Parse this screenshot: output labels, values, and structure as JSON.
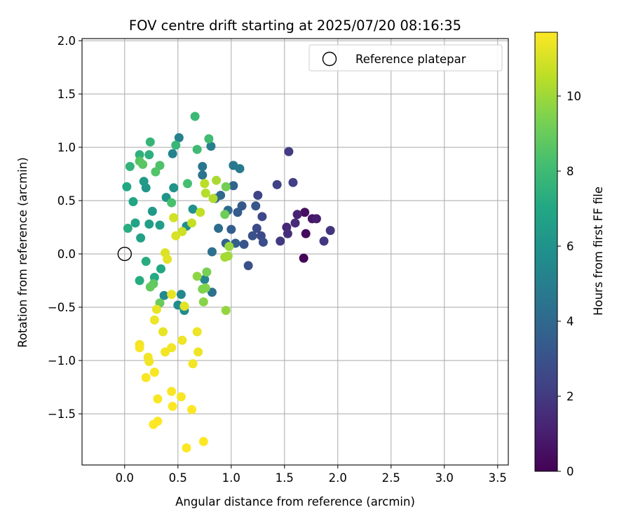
{
  "chart_data": {
    "type": "scatter",
    "title": "FOV centre drift starting at 2025/07/20 08:16:35",
    "xlabel": "Angular distance from reference (arcmin)",
    "ylabel": "Rotation from reference (arcmin)",
    "xlim": [
      -0.4,
      3.6
    ],
    "ylim": [
      -1.98,
      2.02
    ],
    "xticks": [
      0.0,
      0.5,
      1.0,
      1.5,
      2.0,
      2.5,
      3.0,
      3.5
    ],
    "xtick_labels": [
      "0.0",
      "0.5",
      "1.0",
      "1.5",
      "2.0",
      "2.5",
      "3.0",
      "3.5"
    ],
    "yticks": [
      -1.5,
      -1.0,
      -0.5,
      0.0,
      0.5,
      1.0,
      1.5,
      2.0
    ],
    "ytick_labels": [
      "−1.5",
      "−1.0",
      "−0.5",
      "0.0",
      "0.5",
      "1.0",
      "1.5",
      "2.0"
    ],
    "grid": true,
    "legend": {
      "position": "upper-right",
      "entries": [
        {
          "label": "Reference platepar",
          "marker": "open-circle"
        }
      ]
    },
    "colorbar": {
      "label": "Hours from first FF file",
      "colormap": "viridis",
      "range": [
        0,
        11.7
      ],
      "ticks": [
        0,
        2,
        4,
        6,
        8,
        10
      ],
      "tick_labels": [
        "0",
        "2",
        "4",
        "6",
        "8",
        "10"
      ]
    },
    "reference_point": {
      "x": 0.0,
      "y": 0.0,
      "label": "Reference platepar"
    },
    "series": [
      {
        "encoding": [
          "x",
          "y",
          "hours"
        ],
        "points": [
          [
            1.68,
            -0.04,
            0.1
          ],
          [
            1.7,
            0.19,
            0.3
          ],
          [
            1.69,
            0.39,
            0.5
          ],
          [
            1.76,
            0.33,
            0.7
          ],
          [
            1.8,
            0.33,
            0.9
          ],
          [
            1.62,
            0.37,
            1.1
          ],
          [
            1.52,
            0.25,
            1.3
          ],
          [
            1.6,
            0.29,
            1.5
          ],
          [
            1.53,
            0.19,
            1.6
          ],
          [
            1.93,
            0.22,
            1.8
          ],
          [
            1.87,
            0.12,
            1.9
          ],
          [
            1.46,
            0.12,
            2.0
          ],
          [
            1.54,
            0.96,
            2.1
          ],
          [
            1.58,
            0.67,
            2.2
          ],
          [
            1.43,
            0.65,
            2.3
          ],
          [
            1.25,
            0.55,
            2.4
          ],
          [
            1.29,
            0.35,
            2.5
          ],
          [
            1.28,
            0.17,
            2.6
          ],
          [
            1.24,
            0.24,
            2.7
          ],
          [
            1.3,
            0.11,
            2.8
          ],
          [
            1.16,
            -0.11,
            2.9
          ],
          [
            1.2,
            0.17,
            3.0
          ],
          [
            1.12,
            0.09,
            3.1
          ],
          [
            1.23,
            0.45,
            3.2
          ],
          [
            1.1,
            0.45,
            3.3
          ],
          [
            1.06,
            0.39,
            3.4
          ],
          [
            1.0,
            0.23,
            3.5
          ],
          [
            1.04,
            0.1,
            3.6
          ],
          [
            0.95,
            0.1,
            3.7
          ],
          [
            1.02,
            0.64,
            3.8
          ],
          [
            0.85,
            0.52,
            3.9
          ],
          [
            0.9,
            0.55,
            4.0
          ],
          [
            0.97,
            0.41,
            4.1
          ],
          [
            0.88,
            0.24,
            4.2
          ],
          [
            0.82,
            0.02,
            4.3
          ],
          [
            0.82,
            -0.36,
            4.4
          ],
          [
            0.73,
            0.74,
            4.5
          ],
          [
            0.73,
            0.82,
            4.6
          ],
          [
            1.02,
            0.83,
            4.7
          ],
          [
            1.08,
            0.8,
            4.8
          ],
          [
            0.81,
            1.01,
            5.0
          ],
          [
            0.51,
            1.09,
            5.1
          ],
          [
            0.45,
            0.94,
            5.2
          ],
          [
            0.75,
            -0.24,
            5.3
          ],
          [
            0.53,
            -0.38,
            5.4
          ],
          [
            0.37,
            -0.39,
            5.5
          ],
          [
            0.56,
            -0.53,
            5.6
          ],
          [
            0.5,
            -0.48,
            5.7
          ],
          [
            0.58,
            0.26,
            5.8
          ],
          [
            0.64,
            0.42,
            5.9
          ],
          [
            0.46,
            0.62,
            6.0
          ],
          [
            0.39,
            0.53,
            6.1
          ],
          [
            0.2,
            0.62,
            6.2
          ],
          [
            0.26,
            0.4,
            6.3
          ],
          [
            0.18,
            0.68,
            6.4
          ],
          [
            0.33,
            0.27,
            6.5
          ],
          [
            0.23,
            0.28,
            6.6
          ],
          [
            0.15,
            0.15,
            6.7
          ],
          [
            0.1,
            0.29,
            6.8
          ],
          [
            0.08,
            0.49,
            6.9
          ],
          [
            0.02,
            0.63,
            7.0
          ],
          [
            0.34,
            -0.14,
            7.0
          ],
          [
            0.28,
            -0.22,
            7.1
          ],
          [
            0.2,
            -0.07,
            7.2
          ],
          [
            0.14,
            -0.25,
            7.2
          ],
          [
            0.03,
            0.24,
            7.3
          ],
          [
            0.23,
            0.93,
            7.4
          ],
          [
            0.14,
            0.93,
            7.5
          ],
          [
            0.05,
            0.82,
            7.6
          ],
          [
            0.24,
            1.05,
            7.7
          ],
          [
            0.48,
            1.02,
            7.8
          ],
          [
            0.66,
            1.29,
            7.9
          ],
          [
            0.68,
            0.98,
            8.0
          ],
          [
            0.79,
            1.08,
            8.1
          ],
          [
            0.59,
            0.66,
            8.2
          ],
          [
            0.44,
            0.48,
            8.3
          ],
          [
            0.33,
            0.83,
            8.4
          ],
          [
            0.29,
            0.77,
            8.5
          ],
          [
            0.14,
            0.87,
            8.6
          ],
          [
            0.17,
            0.84,
            8.7
          ],
          [
            0.27,
            -0.28,
            8.8
          ],
          [
            0.24,
            -0.31,
            8.9
          ],
          [
            0.33,
            -0.46,
            9.0
          ],
          [
            0.94,
            0.37,
            9.1
          ],
          [
            0.95,
            0.63,
            9.2
          ],
          [
            0.77,
            -0.17,
            9.3
          ],
          [
            0.73,
            -0.33,
            9.4
          ],
          [
            0.76,
            -0.32,
            9.5
          ],
          [
            0.74,
            -0.45,
            9.6
          ],
          [
            0.68,
            -0.21,
            9.7
          ],
          [
            0.95,
            -0.53,
            9.8
          ],
          [
            0.98,
            0.07,
            9.9
          ],
          [
            0.97,
            -0.02,
            10.0
          ],
          [
            0.94,
            -0.03,
            10.1
          ],
          [
            0.86,
            0.69,
            10.2
          ],
          [
            0.83,
            0.52,
            10.3
          ],
          [
            0.76,
            0.57,
            10.4
          ],
          [
            0.75,
            0.66,
            10.5
          ],
          [
            0.71,
            0.39,
            10.6
          ],
          [
            0.63,
            0.29,
            10.7
          ],
          [
            0.54,
            0.21,
            10.8
          ],
          [
            0.46,
            0.34,
            10.9
          ],
          [
            0.48,
            0.17,
            11.0
          ],
          [
            0.38,
            0.01,
            11.1
          ],
          [
            0.4,
            -0.05,
            11.2
          ],
          [
            0.56,
            -0.49,
            11.2
          ],
          [
            0.44,
            -0.38,
            11.3
          ],
          [
            0.3,
            -0.52,
            11.3
          ],
          [
            0.36,
            -0.73,
            11.3
          ],
          [
            0.28,
            -0.62,
            11.4
          ],
          [
            0.68,
            -0.73,
            11.4
          ],
          [
            0.69,
            -0.92,
            11.4
          ],
          [
            0.54,
            -0.81,
            11.4
          ],
          [
            0.64,
            -1.03,
            11.5
          ],
          [
            0.44,
            -0.88,
            11.5
          ],
          [
            0.38,
            -0.92,
            11.5
          ],
          [
            0.22,
            -0.97,
            11.5
          ],
          [
            0.23,
            -1.01,
            11.5
          ],
          [
            0.14,
            -0.85,
            11.5
          ],
          [
            0.14,
            -0.88,
            11.6
          ],
          [
            0.2,
            -1.16,
            11.6
          ],
          [
            0.28,
            -1.11,
            11.6
          ],
          [
            0.44,
            -1.29,
            11.6
          ],
          [
            0.53,
            -1.34,
            11.6
          ],
          [
            0.31,
            -1.36,
            11.6
          ],
          [
            0.45,
            -1.43,
            11.7
          ],
          [
            0.63,
            -1.46,
            11.7
          ],
          [
            0.27,
            -1.6,
            11.7
          ],
          [
            0.31,
            -1.57,
            11.7
          ],
          [
            0.58,
            -1.82,
            11.7
          ],
          [
            0.74,
            -1.76,
            11.7
          ]
        ]
      }
    ]
  }
}
